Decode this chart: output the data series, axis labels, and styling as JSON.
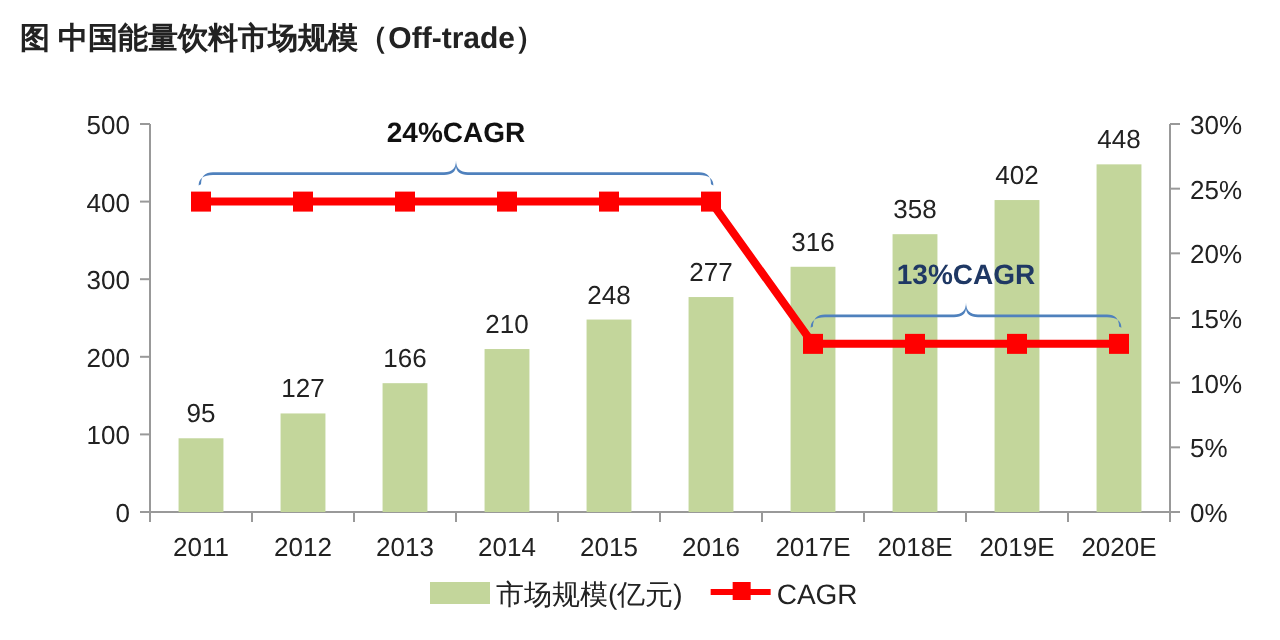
{
  "chart_data": {
    "type": "bar",
    "title": "图  中国能量饮料市场规模（Off-trade）",
    "categories": [
      "2011",
      "2012",
      "2013",
      "2014",
      "2015",
      "2016",
      "2017E",
      "2018E",
      "2019E",
      "2020E"
    ],
    "series": [
      {
        "name": "市场规模(亿元)",
        "color": "#c3d69b",
        "values": [
          95,
          127,
          166,
          210,
          248,
          277,
          316,
          358,
          402,
          448
        ],
        "data_labels": true
      },
      {
        "name": "CAGR",
        "type": "line",
        "axis": "y2",
        "color": "#ff0000",
        "marker": "square",
        "values": [
          24,
          24,
          24,
          24,
          24,
          24,
          13,
          13,
          13,
          13
        ]
      }
    ],
    "ylim": [
      0,
      500
    ],
    "yticks": [
      0,
      100,
      200,
      300,
      400,
      500
    ],
    "y2lim": [
      0,
      30
    ],
    "y2ticks": [
      {
        "value": 0,
        "label": "0%"
      },
      {
        "value": 5,
        "label": "5%"
      },
      {
        "value": 10,
        "label": "10%"
      },
      {
        "value": 15,
        "label": "15%"
      },
      {
        "value": 20,
        "label": "20%"
      },
      {
        "value": 25,
        "label": "25%"
      },
      {
        "value": 30,
        "label": "30%"
      }
    ],
    "annotations": [
      "24%CAGR",
      "13%CAGR"
    ],
    "legend": "bottom",
    "grid": false
  }
}
